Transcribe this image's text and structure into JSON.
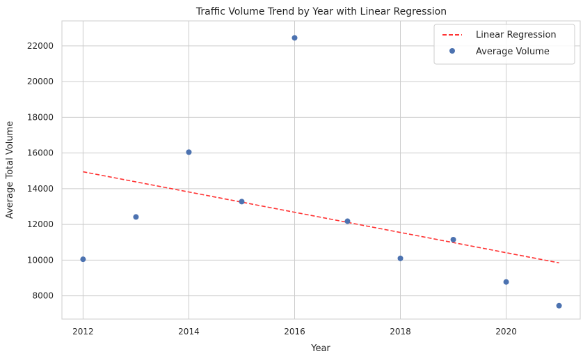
{
  "chart_data": {
    "type": "scatter",
    "title": "Traffic Volume Trend by Year with Linear Regression",
    "xlabel": "Year",
    "ylabel": "Average Total Volume",
    "xlim": [
      2011.6,
      2021.4
    ],
    "ylim": [
      6700,
      23400
    ],
    "xticks": [
      2012,
      2014,
      2016,
      2018,
      2020
    ],
    "yticks": [
      8000,
      10000,
      12000,
      14000,
      16000,
      18000,
      20000,
      22000
    ],
    "grid": true,
    "legend_position": "top-right",
    "series": [
      {
        "name": "Average Volume",
        "kind": "scatter",
        "color": "#4c72b0",
        "x": [
          2012,
          2013,
          2014,
          2015,
          2016,
          2017,
          2018,
          2019,
          2020,
          2021
        ],
        "y": [
          10050,
          12420,
          16050,
          13280,
          22450,
          12180,
          10100,
          11150,
          8780,
          7450
        ]
      },
      {
        "name": "Linear Regression",
        "kind": "line",
        "style": "dashed",
        "color": "#ff3333",
        "x": [
          2012,
          2021
        ],
        "y": [
          14950,
          9850
        ]
      }
    ]
  }
}
